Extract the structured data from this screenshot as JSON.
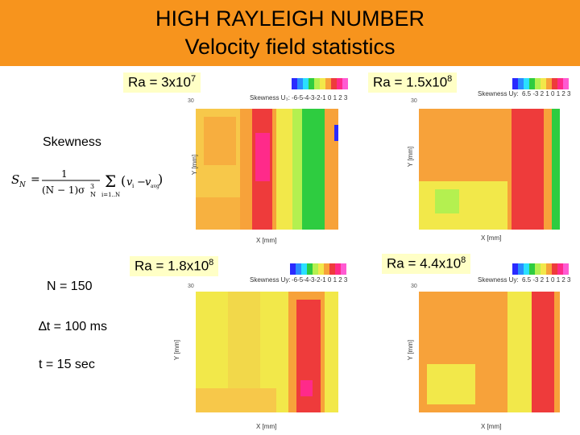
{
  "header": {
    "title_line1": "HIGH RAYLEIGH NUMBER",
    "title_line2": "Velocity field statistics",
    "color": "#f7941d"
  },
  "left_panel": {
    "skewness_label": "Skewness",
    "n_label": "N = 150",
    "dt_label": "∆t = 100 ms",
    "t_label": "t = 15 sec"
  },
  "plots": [
    {
      "ra_base": "Ra = 3x10",
      "ra_exp": "7",
      "colorbar_title": "Skewness U₃:",
      "colorbar_ticks": "-6-5-4-3-2-1 0 1 2 3",
      "xlabel": "X [mm]",
      "ylabel": "Y [mm]"
    },
    {
      "ra_base": "Ra = 1.5x10",
      "ra_exp": "8",
      "colorbar_title": "Skewness Uy:",
      "colorbar_ticks": "6.5 -3 2 1 0 1 2 3",
      "xlabel": "X [mm]",
      "ylabel": "Y [mm]"
    },
    {
      "ra_base": "Ra = 1.8x10",
      "ra_exp": "8",
      "colorbar_title": "Skewness Uy:",
      "colorbar_ticks": "-6-5-4-3-2-1 0 1 2 3",
      "xlabel": "X [mm]",
      "ylabel": "Y [mm]"
    },
    {
      "ra_base": "Ra = 4.4x10",
      "ra_exp": "8",
      "colorbar_title": "Skewness Uy:",
      "colorbar_ticks": "6.5 -3 2 1 0 1 2 3",
      "xlabel": "X [mm]",
      "ylabel": "Y [mm]"
    }
  ],
  "colors": {
    "label_bg": "#ffffc6",
    "field_yellow": "#f2e84a",
    "field_orange": "#f7a23a",
    "field_red": "#ee3b3b",
    "field_magenta": "#ff2a8a",
    "field_green": "#2ecc40"
  }
}
